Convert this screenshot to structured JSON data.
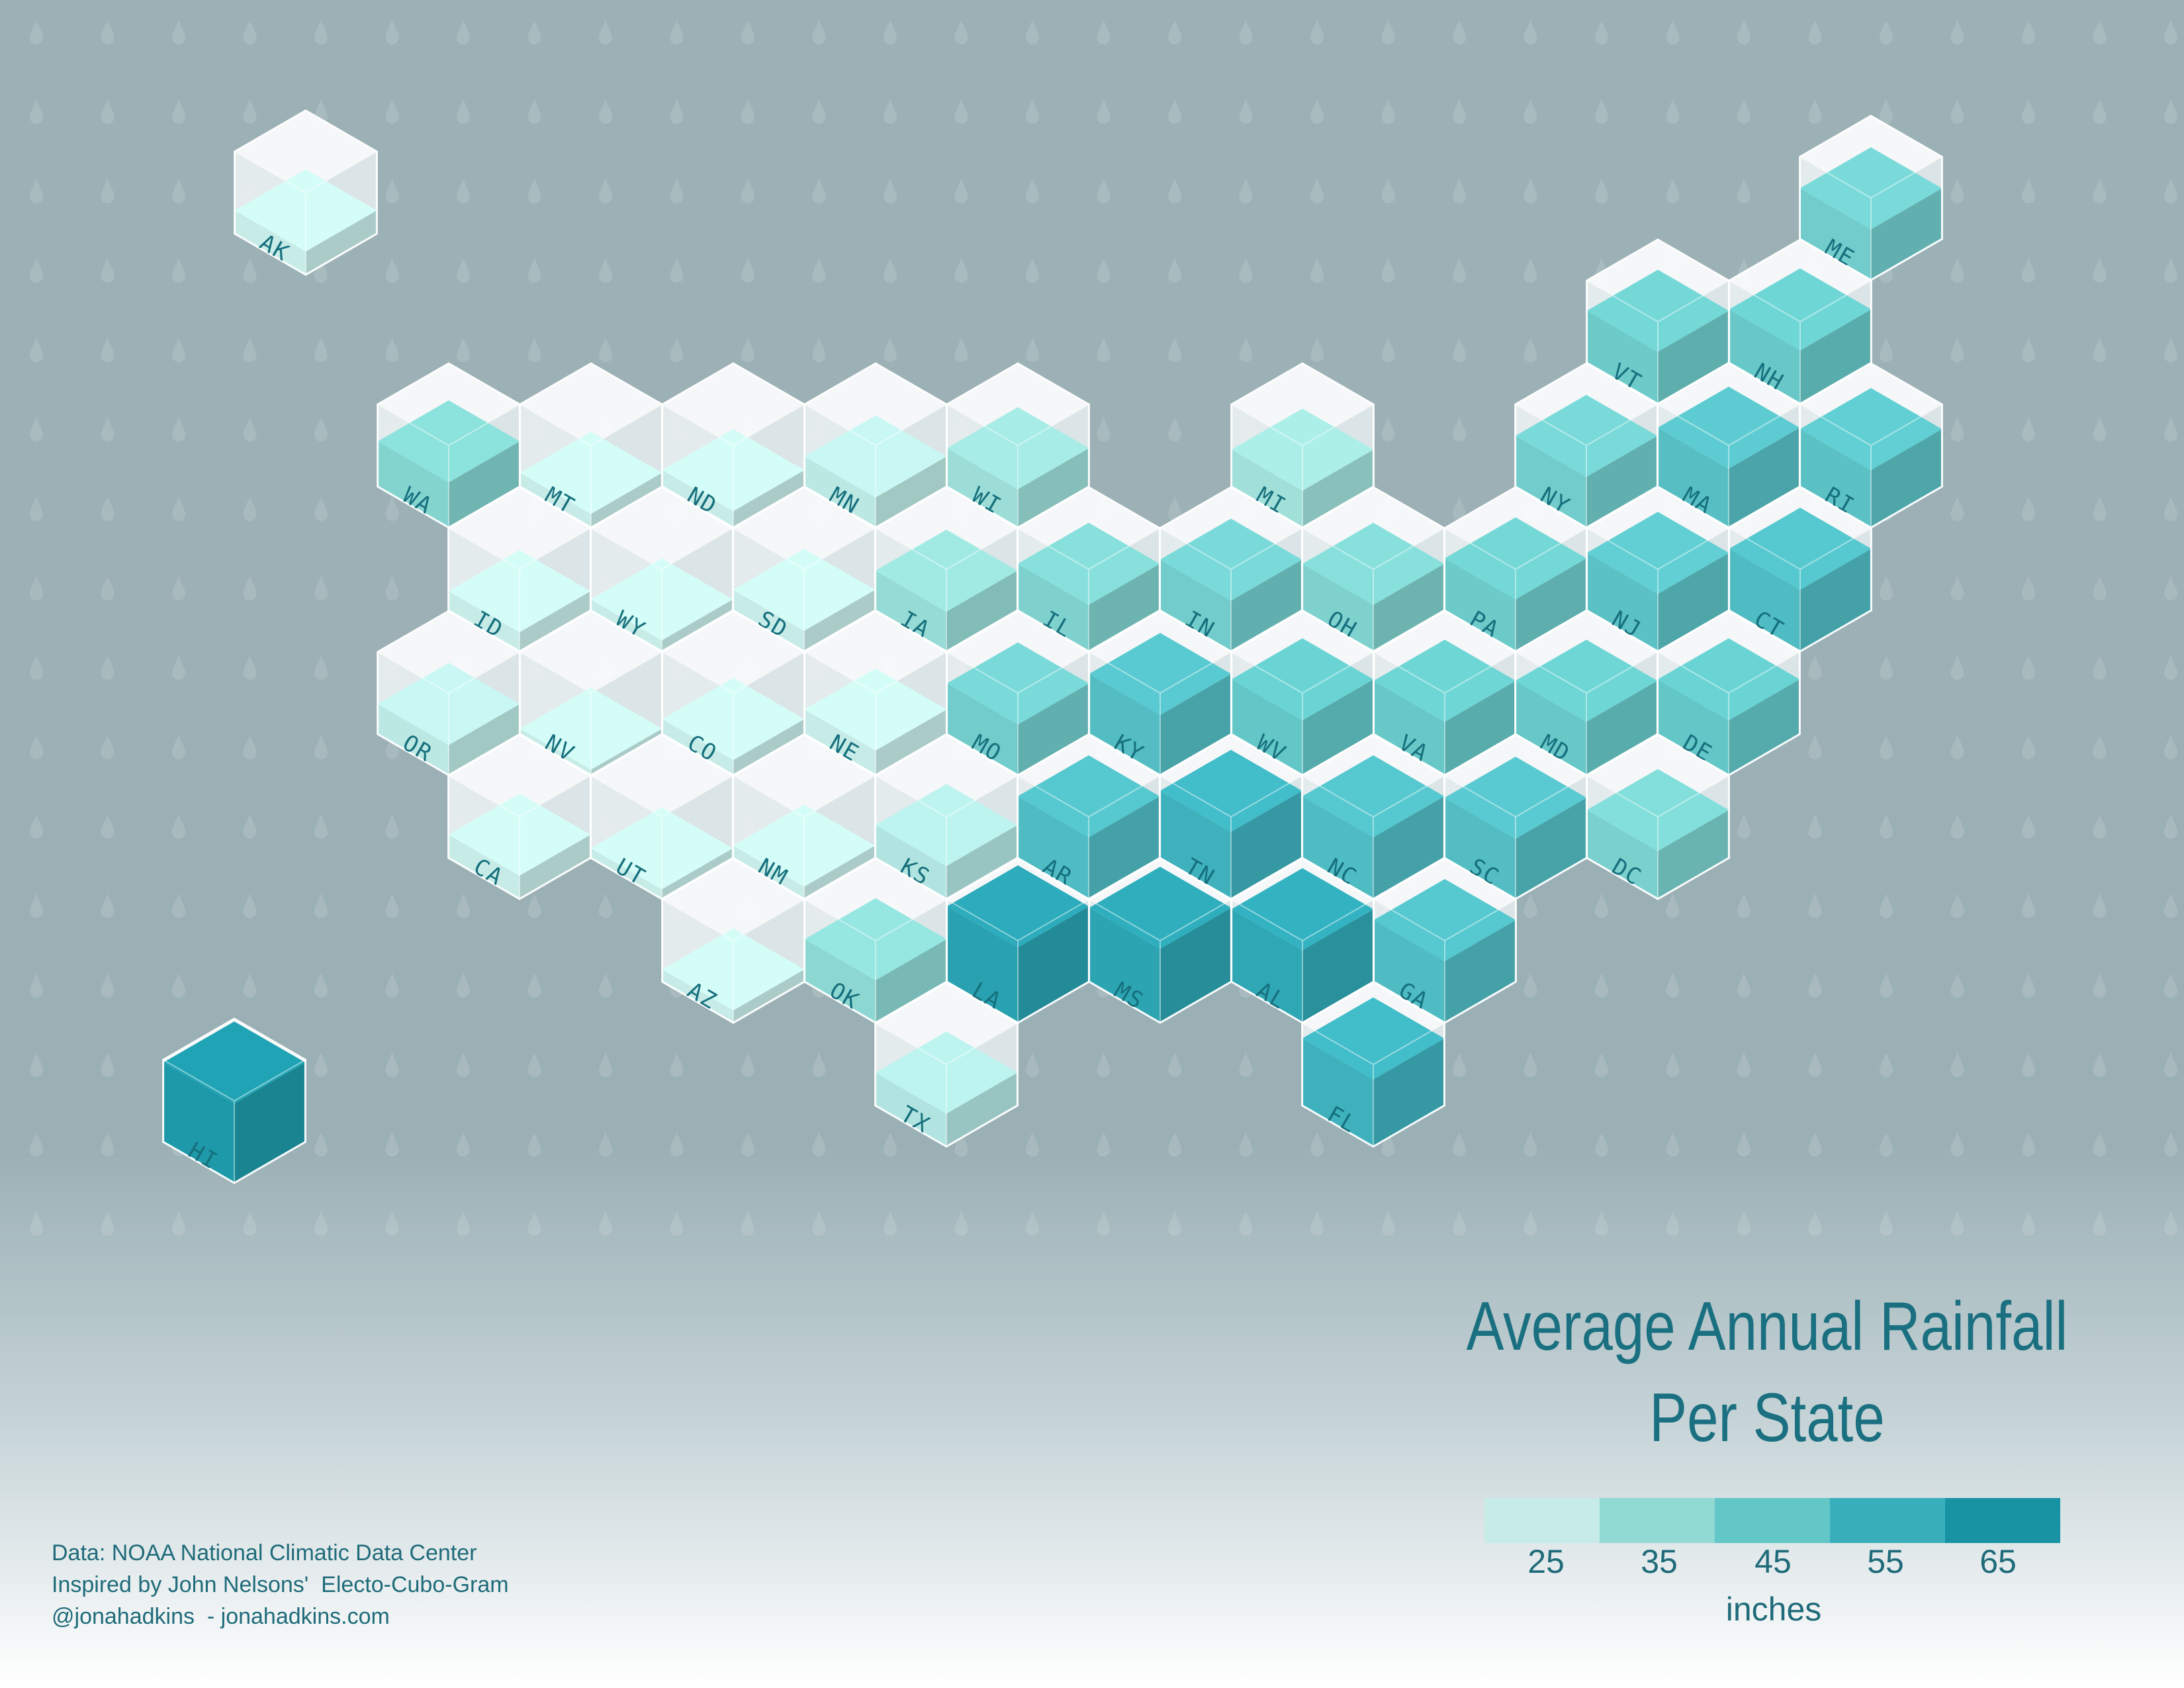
{
  "title": {
    "line1": "Average Annual Rainfall",
    "line2": "Per State"
  },
  "legend": {
    "ticks": [
      "25",
      "35",
      "45",
      "55",
      "65"
    ],
    "units": "inches",
    "colors": [
      "#c7ece8",
      "#91d9d3",
      "#63c6c7",
      "#3aafbc",
      "#1793a4"
    ]
  },
  "credits": [
    "Data: NOAA National Climatic Data Center",
    "Inspired by John Nelsons'  Electo-Cubo-Gram",
    "@jonahadkins  - jonahadkins.com"
  ],
  "colors": {
    "background": "#9cb1b6",
    "accent_text": "#1a7080",
    "empty_cube": "#f4f7f8"
  },
  "chart_data": {
    "type": "hex-cube tile map",
    "measure": "average annual rainfall",
    "unit": "inches",
    "legend_range": [
      25,
      65
    ],
    "states": [
      {
        "abbr": "AK",
        "value": 22
      },
      {
        "abbr": "HI",
        "value": 63
      },
      {
        "abbr": "WA",
        "value": 38
      },
      {
        "abbr": "MT",
        "value": 15
      },
      {
        "abbr": "ND",
        "value": 17
      },
      {
        "abbr": "MN",
        "value": 27
      },
      {
        "abbr": "WI",
        "value": 33
      },
      {
        "abbr": "MI",
        "value": 32
      },
      {
        "abbr": "ID",
        "value": 19
      },
      {
        "abbr": "WY",
        "value": 13
      },
      {
        "abbr": "SD",
        "value": 20
      },
      {
        "abbr": "IA",
        "value": 34
      },
      {
        "abbr": "IL",
        "value": 39
      },
      {
        "abbr": "IN",
        "value": 42
      },
      {
        "abbr": "OH",
        "value": 39
      },
      {
        "abbr": "PA",
        "value": 43
      },
      {
        "abbr": "NY",
        "value": 42
      },
      {
        "abbr": "VT",
        "value": 43
      },
      {
        "abbr": "NH",
        "value": 44
      },
      {
        "abbr": "ME",
        "value": 42
      },
      {
        "abbr": "MA",
        "value": 48
      },
      {
        "abbr": "RI",
        "value": 47
      },
      {
        "abbr": "NJ",
        "value": 47
      },
      {
        "abbr": "CT",
        "value": 50
      },
      {
        "abbr": "OR",
        "value": 27
      },
      {
        "abbr": "NV",
        "value": 9
      },
      {
        "abbr": "CO",
        "value": 16
      },
      {
        "abbr": "NE",
        "value": 23
      },
      {
        "abbr": "MO",
        "value": 42
      },
      {
        "abbr": "KY",
        "value": 49
      },
      {
        "abbr": "WV",
        "value": 45
      },
      {
        "abbr": "VA",
        "value": 44
      },
      {
        "abbr": "MD",
        "value": 44
      },
      {
        "abbr": "DE",
        "value": 45
      },
      {
        "abbr": "DC",
        "value": 40
      },
      {
        "abbr": "CA",
        "value": 22
      },
      {
        "abbr": "UT",
        "value": 12
      },
      {
        "abbr": "NM",
        "value": 14
      },
      {
        "abbr": "KS",
        "value": 29
      },
      {
        "abbr": "AR",
        "value": 50
      },
      {
        "abbr": "TN",
        "value": 54
      },
      {
        "abbr": "NC",
        "value": 50
      },
      {
        "abbr": "SC",
        "value": 49
      },
      {
        "abbr": "AZ",
        "value": 14
      },
      {
        "abbr": "OK",
        "value": 36
      },
      {
        "abbr": "LA",
        "value": 60
      },
      {
        "abbr": "MS",
        "value": 59
      },
      {
        "abbr": "AL",
        "value": 58
      },
      {
        "abbr": "GA",
        "value": 50
      },
      {
        "abbr": "TX",
        "value": 29
      },
      {
        "abbr": "FL",
        "value": 54
      }
    ]
  }
}
